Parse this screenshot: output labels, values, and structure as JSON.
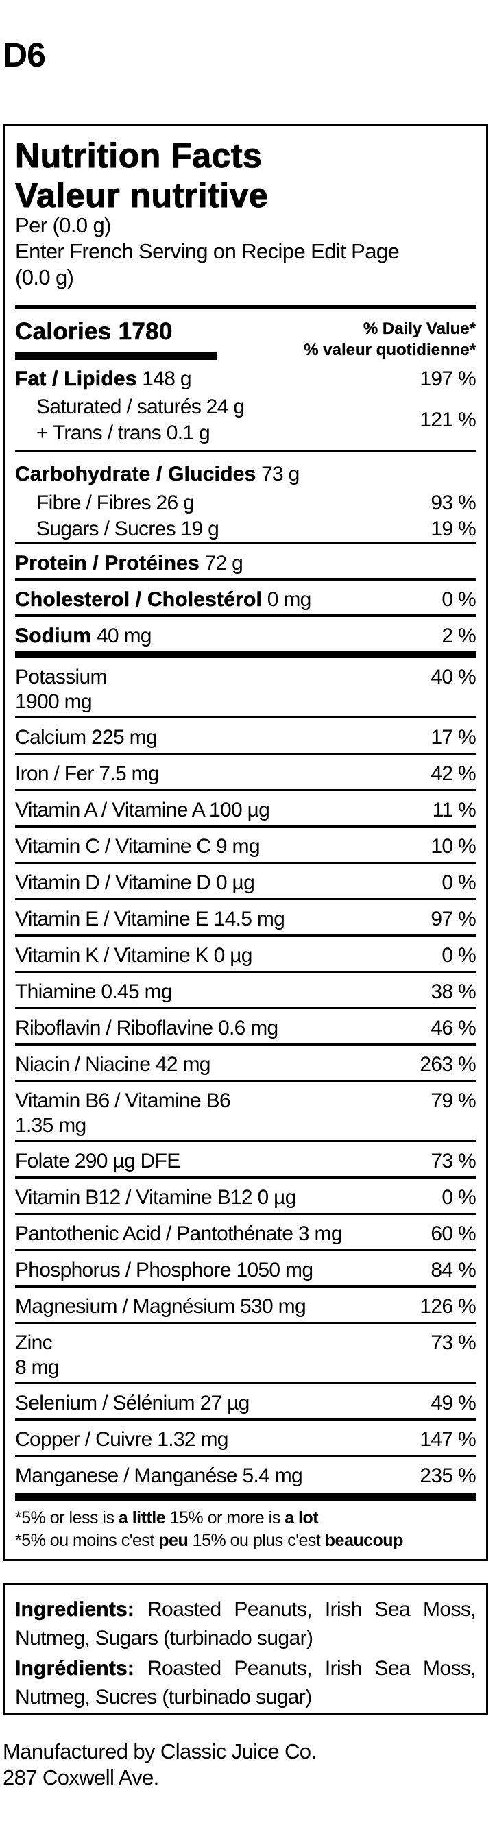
{
  "code": "D6",
  "label": {
    "title_en": "Nutrition Facts",
    "title_fr": "Valeur nutritive",
    "serving_line1": "Per (0.0 g)",
    "serving_line2": "Enter French Serving on Recipe Edit Page",
    "serving_line3": "(0.0 g)",
    "calories_label": "Calories",
    "calories_value": "1780",
    "dv_header_en": "% Daily Value*",
    "dv_header_fr": "% valeur quotidienne*",
    "fat": {
      "label": "Fat / Lipides",
      "amount": "148 g",
      "dv": "197 %"
    },
    "saturated": {
      "label": "Saturated / saturés 24 g",
      "amount": ""
    },
    "trans": {
      "label": "+ Trans / trans 0.1 g"
    },
    "sat_trans_dv": "121 %",
    "carbohydrate": {
      "label": "Carbohydrate / Glucides",
      "amount": "73 g"
    },
    "fibre": {
      "label": "Fibre / Fibres 26 g",
      "dv": "93 %"
    },
    "sugars": {
      "label": "Sugars / Sucres 19 g",
      "dv": "19 %"
    },
    "protein": {
      "label": "Protein / Protéines",
      "amount": "72 g"
    },
    "cholesterol": {
      "label": "Cholesterol / Cholestérol",
      "amount": "0 mg",
      "dv": "0 %"
    },
    "sodium": {
      "label": "Sodium",
      "amount": "40 mg",
      "dv": "2 %"
    },
    "micros": [
      {
        "line1": "Potassium",
        "line2": "1900 mg",
        "dv": "40 %"
      },
      {
        "line1": "Calcium 225 mg",
        "dv": "17 %"
      },
      {
        "line1": "Iron / Fer 7.5 mg",
        "dv": "42 %"
      },
      {
        "line1": "Vitamin A / Vitamine A 100 µg",
        "dv": "11 %"
      },
      {
        "line1": "Vitamin C / Vitamine C 9 mg",
        "dv": "10 %"
      },
      {
        "line1": "Vitamin D / Vitamine D 0 µg",
        "dv": "0 %"
      },
      {
        "line1": "Vitamin E / Vitamine E 14.5 mg",
        "dv": "97 %"
      },
      {
        "line1": "Vitamin K / Vitamine K 0 µg",
        "dv": "0 %"
      },
      {
        "line1": "Thiamine 0.45 mg",
        "dv": "38 %"
      },
      {
        "line1": "Riboflavin / Riboflavine 0.6 mg",
        "dv": "46 %"
      },
      {
        "line1": "Niacin / Niacine 42 mg",
        "dv": "263 %"
      },
      {
        "line1": "Vitamin B6 / Vitamine B6",
        "line2": "1.35 mg",
        "dv": "79 %"
      },
      {
        "line1": "Folate 290 µg DFE",
        "dv": "73 %"
      },
      {
        "line1": "Vitamin B12 / Vitamine B12 0 µg",
        "dv": "0 %"
      },
      {
        "line1": "Pantothenic Acid / Pantothénate 3 mg",
        "dv": "60 %"
      },
      {
        "line1": "Phosphorus / Phosphore 1050 mg",
        "dv": "84 %"
      },
      {
        "line1": "Magnesium / Magnésium 530 mg",
        "dv": "126 %"
      },
      {
        "line1": "Zinc",
        "line2": "8 mg",
        "dv": "73 %"
      },
      {
        "line1": "Selenium / Sélénium 27 µg",
        "dv": "49 %"
      },
      {
        "line1": "Copper / Cuivre 1.32 mg",
        "dv": "147 %"
      },
      {
        "line1": "Manganese / Manganése 5.4 mg",
        "dv": "235 %"
      }
    ],
    "footnote_en": {
      "a": "*5% or less is ",
      "b": "a little",
      "c": " 15% or more is ",
      "d": "a lot"
    },
    "footnote_fr": {
      "a": "*5% ou moins c'est ",
      "b": "peu",
      "c": " 15% ou plus c'est ",
      "d": "beaucoup"
    }
  },
  "ingredients": {
    "en_label": "Ingredients:",
    "en_text": " Roasted Peanuts, Irish Sea Moss, Nutmeg, Sugars (turbinado sugar)",
    "fr_label": "Ingrédients:",
    "fr_text": " Roasted Peanuts, Irish Sea Moss, Nutmeg, Sucres (turbinado sugar)"
  },
  "manufacturer": {
    "line1": "Manufactured by Classic Juice Co.",
    "line2": "287 Coxwell Ave."
  }
}
